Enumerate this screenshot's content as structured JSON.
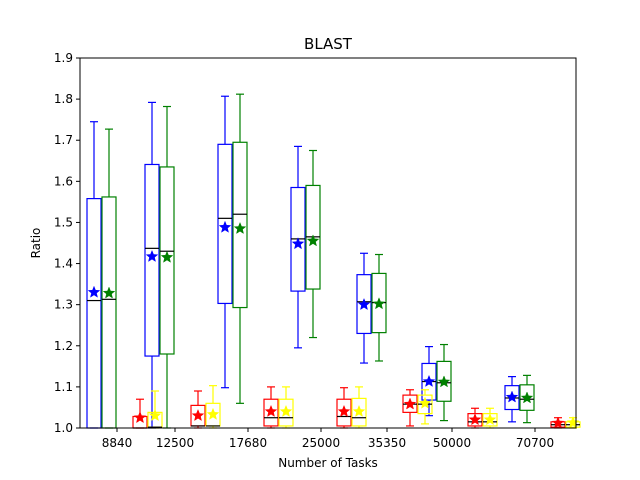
{
  "chart_data": {
    "type": "box",
    "title": "BLAST",
    "xlabel": "Number of Tasks",
    "ylabel": "Ratio",
    "ylim": [
      1.0,
      1.9
    ],
    "yticks": [
      "1.0",
      "1.1",
      "1.2",
      "1.3",
      "1.4",
      "1.5",
      "1.6",
      "1.7",
      "1.8",
      "1.9"
    ],
    "categories": [
      "8840",
      "12500",
      "17680",
      "25000",
      "35350",
      "50000",
      "70700"
    ],
    "grid": false,
    "legend": "none",
    "mean_marker": "star",
    "series": [
      {
        "color": "#0000ff",
        "boxes": [
          {
            "whislo": 1.0,
            "q1": 1.0,
            "med": 1.31,
            "q3": 1.558,
            "whishi": 1.745,
            "mean": 1.33
          },
          {
            "whislo": 1.0,
            "q1": 1.175,
            "med": 1.437,
            "q3": 1.641,
            "whishi": 1.792,
            "mean": 1.417
          },
          {
            "whislo": 1.098,
            "q1": 1.303,
            "med": 1.51,
            "q3": 1.69,
            "whishi": 1.807,
            "mean": 1.488
          },
          {
            "whislo": 1.195,
            "q1": 1.333,
            "med": 1.46,
            "q3": 1.585,
            "whishi": 1.685,
            "mean": 1.448
          },
          {
            "whislo": 1.158,
            "q1": 1.23,
            "med": 1.307,
            "q3": 1.373,
            "whishi": 1.425,
            "mean": 1.3
          },
          {
            "whislo": 1.03,
            "q1": 1.068,
            "med": 1.113,
            "q3": 1.157,
            "whishi": 1.198,
            "mean": 1.113
          },
          {
            "whislo": 1.015,
            "q1": 1.045,
            "med": 1.073,
            "q3": 1.103,
            "whishi": 1.125,
            "mean": 1.075
          }
        ]
      },
      {
        "color": "#008000",
        "boxes": [
          {
            "whislo": 1.0,
            "q1": 1.0,
            "med": 1.313,
            "q3": 1.562,
            "whishi": 1.727,
            "mean": 1.328
          },
          {
            "whislo": 1.0,
            "q1": 1.18,
            "med": 1.43,
            "q3": 1.635,
            "whishi": 1.782,
            "mean": 1.415
          },
          {
            "whislo": 1.06,
            "q1": 1.293,
            "med": 1.52,
            "q3": 1.695,
            "whishi": 1.812,
            "mean": 1.485
          },
          {
            "whislo": 1.22,
            "q1": 1.338,
            "med": 1.465,
            "q3": 1.59,
            "whishi": 1.675,
            "mean": 1.455
          },
          {
            "whislo": 1.163,
            "q1": 1.232,
            "med": 1.305,
            "q3": 1.376,
            "whishi": 1.422,
            "mean": 1.302
          },
          {
            "whislo": 1.018,
            "q1": 1.065,
            "med": 1.11,
            "q3": 1.162,
            "whishi": 1.203,
            "mean": 1.112
          },
          {
            "whislo": 1.013,
            "q1": 1.043,
            "med": 1.07,
            "q3": 1.105,
            "whishi": 1.128,
            "mean": 1.073
          }
        ]
      },
      {
        "color": "#ff0000",
        "boxes": [
          {
            "whislo": 1.0,
            "q1": 1.0,
            "med": 1.0,
            "q3": 1.028,
            "whishi": 1.07,
            "mean": 1.025
          },
          {
            "whislo": 1.0,
            "q1": 1.005,
            "med": 1.005,
            "q3": 1.055,
            "whishi": 1.09,
            "mean": 1.03
          },
          {
            "whislo": 1.0,
            "q1": 1.005,
            "med": 1.025,
            "q3": 1.07,
            "whishi": 1.1,
            "mean": 1.04
          },
          {
            "whislo": 1.0,
            "q1": 1.005,
            "med": 1.028,
            "q3": 1.07,
            "whishi": 1.098,
            "mean": 1.04
          },
          {
            "whislo": 1.005,
            "q1": 1.038,
            "med": 1.058,
            "q3": 1.08,
            "whishi": 1.093,
            "mean": 1.058
          },
          {
            "whislo": 1.0,
            "q1": 1.005,
            "med": 1.015,
            "q3": 1.035,
            "whishi": 1.048,
            "mean": 1.02
          },
          {
            "whislo": 1.0,
            "q1": 1.002,
            "med": 1.008,
            "q3": 1.015,
            "whishi": 1.025,
            "mean": 1.012
          }
        ]
      },
      {
        "color": "#ffff00",
        "boxes": [
          {
            "whislo": 1.0,
            "q1": 1.002,
            "med": 1.002,
            "q3": 1.038,
            "whishi": 1.09,
            "mean": 1.03
          },
          {
            "whislo": 1.0,
            "q1": 1.005,
            "med": 1.005,
            "q3": 1.06,
            "whishi": 1.103,
            "mean": 1.033
          },
          {
            "whislo": 1.0,
            "q1": 1.005,
            "med": 1.025,
            "q3": 1.07,
            "whishi": 1.1,
            "mean": 1.04
          },
          {
            "whislo": 1.0,
            "q1": 1.005,
            "med": 1.025,
            "q3": 1.072,
            "whishi": 1.1,
            "mean": 1.04
          },
          {
            "whislo": 1.01,
            "q1": 1.035,
            "med": 1.058,
            "q3": 1.08,
            "whishi": 1.093,
            "mean": 1.06
          },
          {
            "whislo": 1.0,
            "q1": 1.005,
            "med": 1.015,
            "q3": 1.035,
            "whishi": 1.048,
            "mean": 1.02
          },
          {
            "whislo": 1.0,
            "q1": 1.002,
            "med": 1.008,
            "q3": 1.015,
            "whishi": 1.025,
            "mean": 1.013
          }
        ]
      }
    ]
  }
}
